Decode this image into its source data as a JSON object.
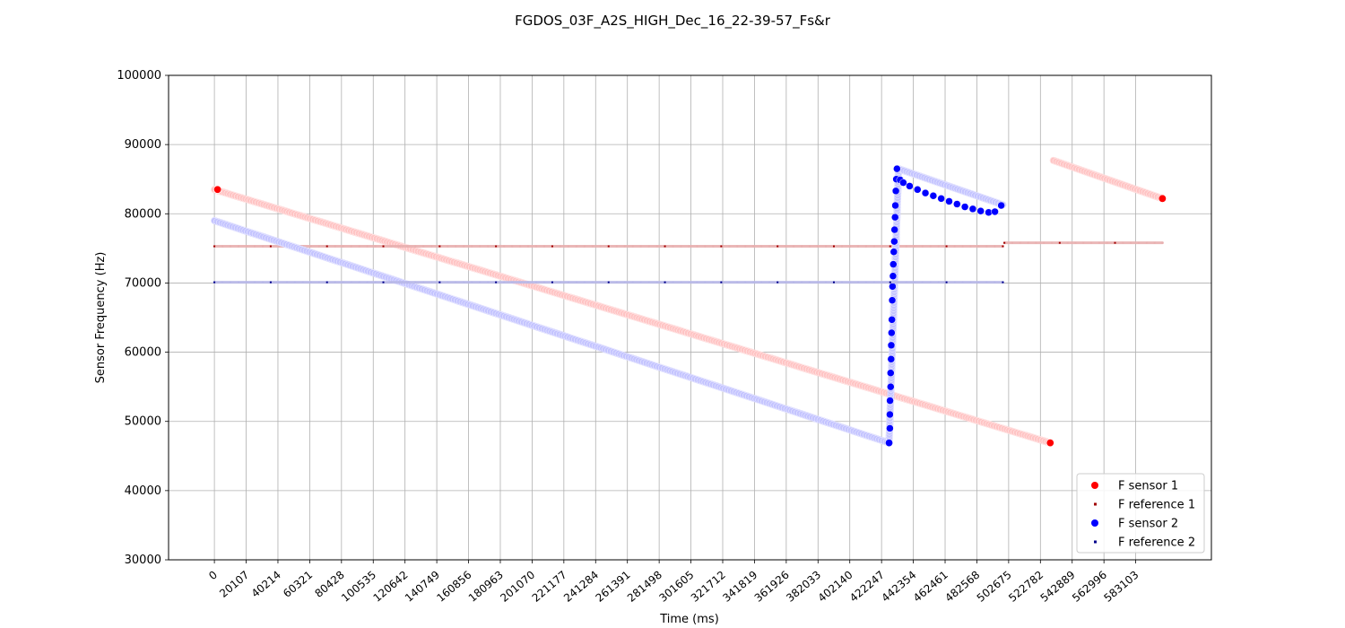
{
  "chart_data": {
    "type": "scatter",
    "title": "FGDOS_03F_A2S_HIGH_Dec_16_22-39-57_Fs&r",
    "xlabel": "Time (ms)",
    "ylabel": "Sensor Frequency (Hz)",
    "ylim": [
      30000,
      100000
    ],
    "yticks": [
      "30000",
      "40000",
      "50000",
      "60000",
      "70000",
      "80000",
      "90000",
      "100000"
    ],
    "xticks": [
      "0",
      "20107",
      "40214",
      "60321",
      "80428",
      "100535",
      "120642",
      "140749",
      "160856",
      "180963",
      "201070",
      "221177",
      "241284",
      "261391",
      "281498",
      "301605",
      "321712",
      "341819",
      "361926",
      "382033",
      "402140",
      "422247",
      "442354",
      "462461",
      "482568",
      "502675",
      "522782",
      "542889",
      "562996",
      "583103"
    ],
    "xlim": [
      -29000,
      631000
    ],
    "grid": true,
    "legend_placement": "lower-right",
    "colors": {
      "sensor1": "#ff0000",
      "sensor1_faded": "#ffc4c4",
      "reference1": "#a00000",
      "reference1_faded": "#e8b0b0",
      "sensor2": "#0000ff",
      "sensor2_faded": "#c4c4ff",
      "reference2": "#00008b",
      "reference2_faded": "#b8b8e8"
    },
    "series": [
      {
        "name": "F sensor 1",
        "marker": "dot",
        "color": "#ff0000",
        "segments": [
          {
            "x": [
              0,
              529000
            ],
            "y": [
              83500,
              46900
            ]
          },
          {
            "x": [
              531000,
              600000
            ],
            "y": [
              87700,
              82200
            ]
          }
        ]
      },
      {
        "name": "F reference 1",
        "marker": "small-square",
        "color": "#a00000",
        "segments": [
          {
            "x": [
              0,
              499000
            ],
            "y": [
              75300,
              75300
            ]
          },
          {
            "x": [
              500000,
              600000
            ],
            "y": [
              75800,
              75800
            ]
          }
        ]
      },
      {
        "name": "F sensor 2",
        "marker": "dot",
        "color": "#0000ff",
        "segments": [
          {
            "x": [
              0,
              427000
            ],
            "y": [
              79000,
              46900
            ]
          },
          {
            "x": [
              427000,
              433000
            ],
            "y": [
              46900,
              86500
            ]
          },
          {
            "x": [
              433000,
              499000
            ],
            "y": [
              86500,
              81300
            ]
          }
        ],
        "scatter_points": [
          [
            427000,
            46900
          ],
          [
            427500,
            49000
          ],
          [
            427500,
            51000
          ],
          [
            427600,
            53000
          ],
          [
            428000,
            55000
          ],
          [
            428000,
            57000
          ],
          [
            428300,
            59000
          ],
          [
            428400,
            61000
          ],
          [
            428600,
            62800
          ],
          [
            428800,
            64700
          ],
          [
            429000,
            67500
          ],
          [
            429200,
            69500
          ],
          [
            429500,
            71000
          ],
          [
            429700,
            72700
          ],
          [
            430000,
            74500
          ],
          [
            430300,
            76000
          ],
          [
            430500,
            77700
          ],
          [
            430800,
            79500
          ],
          [
            431000,
            81200
          ],
          [
            431300,
            83300
          ],
          [
            431600,
            85000
          ],
          [
            432000,
            86500
          ],
          [
            434000,
            84900
          ],
          [
            436000,
            84500
          ],
          [
            440000,
            84000
          ],
          [
            445000,
            83500
          ],
          [
            450000,
            83000
          ],
          [
            455000,
            82600
          ],
          [
            460000,
            82200
          ],
          [
            465000,
            81800
          ],
          [
            470000,
            81400
          ],
          [
            475000,
            81000
          ],
          [
            480000,
            80700
          ],
          [
            485000,
            80400
          ],
          [
            490000,
            80200
          ],
          [
            494000,
            80300
          ],
          [
            498000,
            81200
          ]
        ]
      },
      {
        "name": "F reference 2",
        "marker": "small-square",
        "color": "#00008b",
        "segments": [
          {
            "x": [
              0,
              499000
            ],
            "y": [
              70100,
              70100
            ]
          }
        ]
      }
    ],
    "endpoint_markers": [
      {
        "series": "F sensor 1",
        "x": 529000,
        "y": 46900
      },
      {
        "series": "F sensor 1",
        "x": 600000,
        "y": 82200
      },
      {
        "series": "F sensor 1",
        "x": 2000,
        "y": 83500
      },
      {
        "series": "F sensor 2",
        "x": 427000,
        "y": 46900
      }
    ]
  }
}
